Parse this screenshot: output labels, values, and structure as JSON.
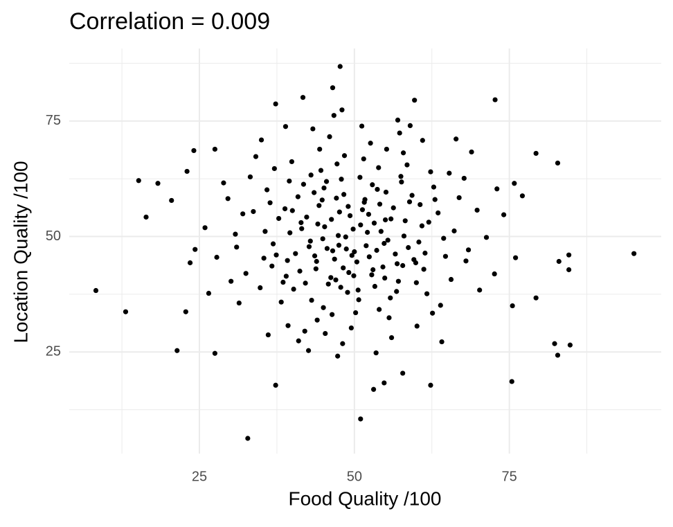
{
  "chart_data": {
    "type": "scatter",
    "title": "Correlation = 0.009",
    "x_label": "Food Quality /100",
    "y_label": "Location Quality /100",
    "xlim": [
      4,
      99.5
    ],
    "ylim": [
      3,
      90.7
    ],
    "xticks": [
      25,
      50,
      75
    ],
    "yticks": [
      25,
      50,
      75
    ],
    "x_minor_grid": [
      12.5,
      37.5,
      62.5,
      87.5
    ],
    "y_minor_grid": [
      12.5,
      37.5,
      62.5,
      87.5
    ],
    "grid": true,
    "color": "#000000",
    "x": [
      45.2,
      48.7,
      51.3,
      43.9,
      55.4,
      47.1,
      52.8,
      39.6,
      58.2,
      46.5,
      53.7,
      41.2,
      49.8,
      56.9,
      44.3,
      60.4,
      37.8,
      50.6,
      47.9,
      54.1,
      42.7,
      63.5,
      35.4,
      51.9,
      48.2,
      57.6,
      45.8,
      40.9,
      61.2,
      49.3,
      38.5,
      55.8,
      44.6,
      66.1,
      52.4,
      33.7,
      47.4,
      59.3,
      43.1,
      50.9,
      64.7,
      36.9,
      53.2,
      46.2,
      57.1,
      41.8,
      49.6,
      62.8,
      39.2,
      55.0,
      30.8,
      68.4,
      45.0,
      51.5,
      42.3,
      58.7,
      48.9,
      35.9,
      54.6,
      60.9,
      44.9,
      47.6,
      52.1,
      49.1,
      56.3,
      41.5,
      53.9,
      38.2,
      65.6,
      46.8,
      32.5,
      57.9,
      50.2,
      43.5,
      61.7,
      39.9,
      54.8,
      47.0,
      69.8,
      36.4,
      59.9,
      44.0,
      51.7,
      48.4,
      55.6,
      34.8,
      62.3,
      40.5,
      66.9,
      53.3,
      46.0,
      29.6,
      71.3,
      42.0,
      57.3,
      50.0,
      37.1,
      63.9,
      45.5,
      54.3,
      27.8,
      72.6,
      48.1,
      43.3,
      60.1,
      33.2,
      58.5,
      39.3,
      67.7,
      52.6,
      25.9,
      74.1,
      46.7,
      41.0,
      61.0,
      31.4,
      56.0,
      35.0,
      70.2,
      49.5,
      28.9,
      68.9,
      44.4,
      53.5,
      38.9,
      64.1,
      47.3,
      57.0,
      30.1,
      73.0,
      26.5,
      75.5,
      42.6,
      59.0,
      36.1,
      66.4,
      51.2,
      34.1,
      62.6,
      48.0,
      24.3,
      77.1,
      45.3,
      55.2,
      32.0,
      68.0,
      40.2,
      60.6,
      43.8,
      52.9,
      49.0,
      46.3,
      50.4,
      42.9,
      56.6,
      44.8,
      53.0,
      38.8,
      58.0,
      47.8,
      41.4,
      55.1,
      48.6,
      52.3,
      45.6,
      59.6,
      37.4,
      62.0,
      50.7,
      43.0,
      54.0,
      39.0,
      57.5,
      46.4,
      64.4,
      35.6,
      51.0,
      47.2,
      60.0,
      42.1,
      65.3,
      31.0,
      56.8,
      44.1,
      53.6,
      40.0,
      58.9,
      48.3,
      61.4,
      36.7,
      49.9,
      45.1,
      55.9,
      43.6,
      51.6,
      57.8,
      39.5,
      63.0,
      47.5,
      54.9,
      8.3,
      13.1,
      15.2,
      16.4,
      18.3,
      20.5,
      21.4,
      32.8,
      51.0,
      37.3,
      47.7,
      95.1,
      72.7,
      84.8,
      82.8,
      82.3,
      79.3,
      79.3,
      82.8,
      75.4,
      62.3,
      53.1,
      54.8,
      57.8,
      41.7,
      37.3,
      59.7,
      46.5,
      84.6,
      84.6,
      83.0,
      76.0,
      75.8,
      23.0,
      24.1,
      27.5,
      27.5,
      22.8,
      23.5
    ],
    "values": [
      52.1,
      47.3,
      55.8,
      44.6,
      49.2,
      58.3,
      41.7,
      50.8,
      53.4,
      46.9,
      60.2,
      42.5,
      51.6,
      44.1,
      56.7,
      48.8,
      53.9,
      38.4,
      62.4,
      57.0,
      47.8,
      55.1,
      45.3,
      48.0,
      43.2,
      61.8,
      39.7,
      58.6,
      42.9,
      54.5,
      40.1,
      36.7,
      64.3,
      51.2,
      45.6,
      55.4,
      50.2,
      58.9,
      36.2,
      62.8,
      45.7,
      48.4,
      52.9,
      41.1,
      40.3,
      61.3,
      45.9,
      60.7,
      44.8,
      53.6,
      50.5,
      47.1,
      34.6,
      66.8,
      54.2,
      47.6,
      37.9,
      60.1,
      43.4,
      52.3,
      49.5,
      55.3,
      50.9,
      42.2,
      56.2,
      51.7,
      64.9,
      35.8,
      40.7,
      45.1,
      42.0,
      68.1,
      33.5,
      59.5,
      37.6,
      66.2,
      48.5,
      40.6,
      55.7,
      57.3,
      44.3,
      31.9,
      58.0,
      67.5,
      32.4,
      38.9,
      64.0,
      46.3,
      58.4,
      39.2,
      71.6,
      58.2,
      49.8,
      29.5,
      72.4,
      46.7,
      64.7,
      35.1,
      61.9,
      51.1,
      45.5,
      41.9,
      26.8,
      73.3,
      30.6,
      62.9,
      65.5,
      30.7,
      62.6,
      70.2,
      51.9,
      54.7,
      76.2,
      27.4,
      70.8,
      35.6,
      28.1,
      70.9,
      38.4,
      30.2,
      61.6,
      68.3,
      68.9,
      24.8,
      73.8,
      27.2,
      24.1,
      75.2,
      40.3,
      60.3,
      37.7,
      35.0,
      25.3,
      74.0,
      28.7,
      71.1,
      73.9,
      67.3,
      33.4,
      77.4,
      47.2,
      58.8,
      29.0,
      68.9,
      54.9,
      44.7,
      38.6,
      56.9,
      43.0,
      61.2,
      56.5,
      53.7,
      44.5,
      49.0,
      46.2,
      57.9,
      42.8,
      56.0,
      50.1,
      39.0,
      53.0,
      59.6,
      49.9,
      54.8,
      47.4,
      45.0,
      46.0,
      53.1,
      36.3,
      63.3,
      34.2,
      41.4,
      63.0,
      33.1,
      49.6,
      51.1,
      52.5,
      65.7,
      40.0,
      39.9,
      63.7,
      47.7,
      38.1,
      52.7,
      47.0,
      55.6,
      57.5,
      59.1,
      46.4,
      43.6,
      41.5,
      60.5,
      53.8,
      45.8,
      57.4,
      43.7,
      62.0,
      58.0,
      48.1,
      41.0,
      38.3,
      33.7,
      62.1,
      54.2,
      61.5,
      57.8,
      25.3,
      6.3,
      10.5,
      17.8,
      86.8,
      46.3,
      79.6,
      26.5,
      24.3,
      26.8,
      36.7,
      68.0,
      65.9,
      18.6,
      17.8,
      16.9,
      18.3,
      20.4,
      80.1,
      78.7,
      79.5,
      82.2,
      46.0,
      42.8,
      44.6,
      45.4,
      61.5,
      64.1,
      68.6,
      68.9,
      24.7,
      33.7,
      44.3
    ]
  }
}
